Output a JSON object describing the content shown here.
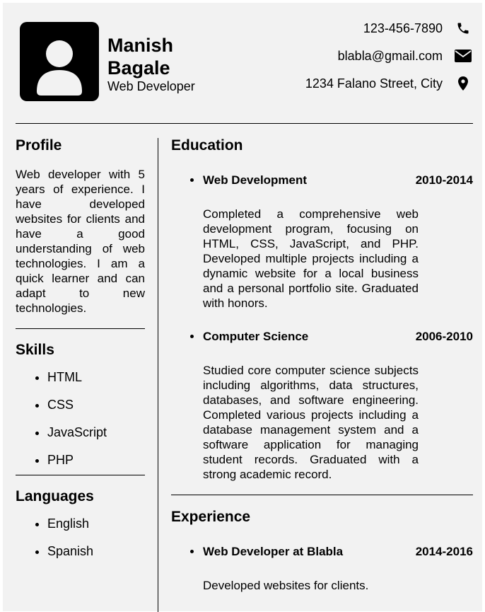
{
  "header": {
    "name_line1": "Manish",
    "name_line2": "Bagale",
    "role": "Web Developer",
    "phone": "123-456-7890",
    "email": "blabla@gmail.com",
    "address": "1234 Falano Street, City",
    "icons": [
      "user-avatar-icon",
      "phone-icon",
      "envelope-icon",
      "map-pin-icon"
    ]
  },
  "profile": {
    "heading": "Profile",
    "text": "Web developer with 5 years of experience. I have developed websites for clients and have a good understanding of web technologies. I am a quick learner and can adapt to new technologies."
  },
  "skills": {
    "heading": "Skills",
    "items": [
      "HTML",
      "CSS",
      "JavaScript",
      "PHP"
    ]
  },
  "languages": {
    "heading": "Languages",
    "items": [
      "English",
      "Spanish"
    ]
  },
  "education": {
    "heading": "Education",
    "entries": [
      {
        "title": "Web Development",
        "years": "2010-2014",
        "description": "Completed a comprehensive web development program, focusing on HTML, CSS, JavaScript, and PHP. Developed multiple projects including a dynamic website for a local business and a personal portfolio site. Graduated with honors."
      },
      {
        "title": "Computer Science",
        "years": "2006-2010",
        "description": "Studied core computer science subjects including algorithms, data structures, databases, and software engineering. Completed various projects including a database management system and a software application for managing student records. Graduated with a strong academic record."
      }
    ]
  },
  "experience": {
    "heading": "Experience",
    "entries": [
      {
        "title": "Web Developer at Blabla",
        "years": "2014-2016",
        "description": "Developed websites for clients."
      }
    ]
  }
}
